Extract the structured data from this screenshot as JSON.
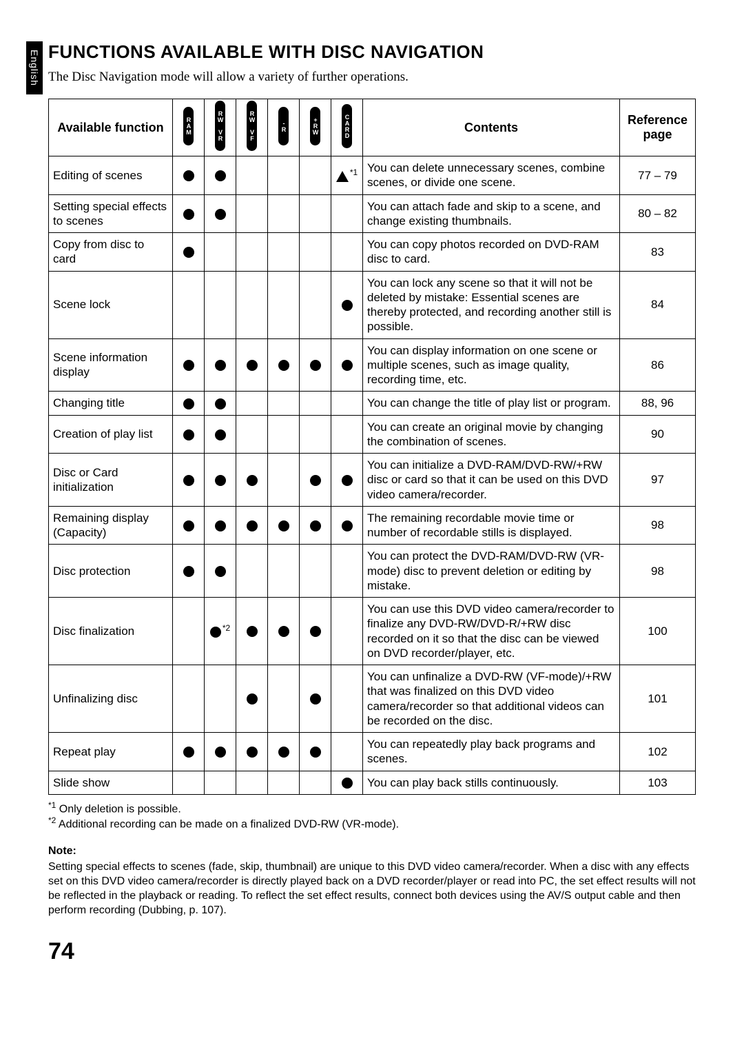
{
  "side_tab": "English",
  "heading": "FUNCTIONS AVAILABLE WITH DISC NAVIGATION",
  "intro": "The Disc Navigation mode will allow a variety of further operations.",
  "columns": {
    "function": "Available function",
    "media": [
      "RAM",
      "RW VR",
      "RW VF",
      "-R",
      "+RW",
      "CARD"
    ],
    "contents": "Contents",
    "reference": "Reference page"
  },
  "rows": [
    {
      "function": "Editing of scenes",
      "media": [
        "dot",
        "dot",
        "",
        "",
        "",
        {
          "shape": "tri",
          "note": "*1"
        }
      ],
      "contents": "You can delete unnecessary scenes, combine scenes, or divide one scene.",
      "ref": "77 – 79"
    },
    {
      "function": "Setting special effects to scenes",
      "media": [
        "dot",
        "dot",
        "",
        "",
        "",
        ""
      ],
      "contents": "You can attach fade and skip to a scene, and change existing thumbnails.",
      "ref": "80 – 82"
    },
    {
      "function": "Copy from disc to card",
      "media": [
        "dot",
        "",
        "",
        "",
        "",
        ""
      ],
      "contents": "You can copy photos recorded on DVD-RAM disc to card.",
      "ref": "83"
    },
    {
      "function": "Scene lock",
      "media": [
        "",
        "",
        "",
        "",
        "",
        "dot"
      ],
      "contents": "You can lock any scene so that it will not be deleted by mistake: Essential scenes are thereby protected, and recording another still is possible.",
      "ref": "84"
    },
    {
      "function": "Scene information display",
      "media": [
        "dot",
        "dot",
        "dot",
        "dot",
        "dot",
        "dot"
      ],
      "contents": "You can display information on one scene or multiple scenes, such as image quality, recording time, etc.",
      "ref": "86"
    },
    {
      "function": "Changing title",
      "media": [
        "dot",
        "dot",
        "",
        "",
        "",
        ""
      ],
      "contents": "You can change the title of play list or program.",
      "ref": "88, 96"
    },
    {
      "function": "Creation of play list",
      "media": [
        "dot",
        "dot",
        "",
        "",
        "",
        ""
      ],
      "contents": "You can create an original movie by changing the combination of scenes.",
      "ref": "90"
    },
    {
      "function": "Disc or Card initialization",
      "media": [
        "dot",
        "dot",
        "dot",
        "",
        "dot",
        "dot"
      ],
      "contents": "You can initialize a DVD-RAM/DVD-RW/+RW disc or card so that it can be used on this DVD video camera/recorder.",
      "ref": "97"
    },
    {
      "function": "Remaining display (Capacity)",
      "media": [
        "dot",
        "dot",
        "dot",
        "dot",
        "dot",
        "dot"
      ],
      "contents": "The remaining recordable movie time or number of recordable stills is displayed.",
      "ref": "98"
    },
    {
      "function": "Disc protection",
      "media": [
        "dot",
        "dot",
        "",
        "",
        "",
        ""
      ],
      "contents": "You can protect the DVD-RAM/DVD-RW (VR-mode) disc to prevent deletion or editing by mistake.",
      "ref": "98"
    },
    {
      "function": "Disc finalization",
      "media": [
        "",
        {
          "shape": "dot",
          "note": "*2"
        },
        "dot",
        "dot",
        "dot",
        ""
      ],
      "contents": "You can use this DVD video camera/recorder to finalize any DVD-RW/DVD-R/+RW disc recorded on it so that the disc can be viewed on DVD recorder/player, etc.",
      "ref": "100"
    },
    {
      "function": "Unfinalizing disc",
      "media": [
        "",
        "",
        "dot",
        "",
        "dot",
        ""
      ],
      "contents": "You can unfinalize a DVD-RW (VF-mode)/+RW that was finalized on this DVD video camera/recorder so that additional videos can be recorded on the disc.",
      "ref": "101"
    },
    {
      "function": "Repeat play",
      "media": [
        "dot",
        "dot",
        "dot",
        "dot",
        "dot",
        ""
      ],
      "contents": "You can repeatedly play back programs and scenes.",
      "ref": "102"
    },
    {
      "function": "Slide show",
      "media": [
        "",
        "",
        "",
        "",
        "",
        "dot"
      ],
      "contents": "You can play back stills continuously.",
      "ref": "103"
    }
  ],
  "footnotes": [
    {
      "mark": "*1",
      "text": "Only deletion is possible."
    },
    {
      "mark": "*2",
      "text": "Additional recording can be made on a finalized DVD-RW (VR-mode)."
    }
  ],
  "note": {
    "heading": "Note:",
    "body": "Setting special effects to scenes (fade, skip, thumbnail) are unique to this DVD video camera/recorder. When a disc with any effects set on this DVD video camera/recorder is directly played back on a DVD recorder/player or read into PC, the set effect results will not be reflected in the playback or reading. To reflect the set effect results, connect both devices using the AV/S output cable and then perform recording (Dubbing, p. 107)."
  },
  "page_number": "74"
}
